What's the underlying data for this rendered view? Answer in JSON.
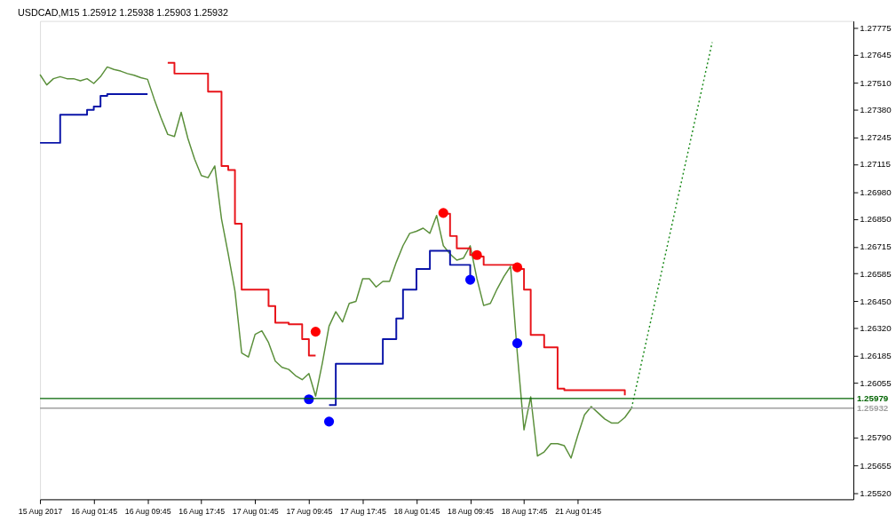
{
  "chart_data": {
    "type": "line",
    "title": "USDCAD,M15  1.25912 1.25938 1.25903 1.25932",
    "categories": [
      "15 Aug 2017",
      null,
      null,
      null,
      null,
      null,
      null,
      null,
      "16 Aug 01:45",
      null,
      null,
      null,
      null,
      null,
      null,
      null,
      "16 Aug 09:45",
      null,
      null,
      null,
      null,
      null,
      null,
      null,
      "16 Aug 17:45",
      null,
      null,
      null,
      null,
      null,
      null,
      null,
      "17 Aug 01:45",
      null,
      null,
      null,
      null,
      null,
      null,
      null,
      "17 Aug 09:45",
      null,
      null,
      null,
      null,
      null,
      null,
      null,
      "17 Aug 17:45",
      null,
      null,
      null,
      null,
      null,
      null,
      null,
      "18 Aug 01:45",
      null,
      null,
      null,
      null,
      null,
      null,
      null,
      "18 Aug 09:45",
      null,
      null,
      null,
      null,
      null,
      null,
      null,
      "18 Aug 17:45",
      null,
      null,
      null,
      null,
      null,
      null,
      null,
      "21 Aug 01:45",
      null,
      null,
      null,
      null,
      null,
      null,
      null,
      null,
      null,
      null,
      null,
      null,
      null,
      null,
      null,
      null,
      null,
      null,
      null,
      null,
      null,
      null,
      null,
      null,
      null,
      null,
      null,
      null,
      null,
      null,
      null,
      null,
      null,
      null,
      null,
      null,
      null,
      null,
      null,
      null,
      null
    ],
    "ylim": [
      1.2549,
      1.2781
    ],
    "yticks": [
      {
        "value": 1.27775,
        "label": "1.27775"
      },
      {
        "value": 1.27645,
        "label": "1.27645"
      },
      {
        "value": 1.2751,
        "label": "1.27510"
      },
      {
        "value": 1.2738,
        "label": "1.27380"
      },
      {
        "value": 1.27245,
        "label": "1.27245"
      },
      {
        "value": 1.27115,
        "label": "1.27115"
      },
      {
        "value": 1.2698,
        "label": "1.26980"
      },
      {
        "value": 1.2685,
        "label": "1.26850"
      },
      {
        "value": 1.26715,
        "label": "1.26715"
      },
      {
        "value": 1.26585,
        "label": "1.26585"
      },
      {
        "value": 1.2645,
        "label": "1.26450"
      },
      {
        "value": 1.2632,
        "label": "1.26320"
      },
      {
        "value": 1.26185,
        "label": "1.26185"
      },
      {
        "value": 1.26055,
        "label": "1.26055"
      },
      {
        "value": 1.2579,
        "label": "1.25790"
      },
      {
        "value": 1.25655,
        "label": "1.25655"
      },
      {
        "value": 1.2552,
        "label": "1.25520"
      }
    ],
    "grid": false,
    "series": [
      {
        "color": "#5a8f3a",
        "marker": "none",
        "values": [
          1.2755,
          1.275,
          1.2753,
          1.2754,
          1.2753,
          1.2753,
          1.2752,
          1.2753,
          1.27507,
          1.2754,
          1.27587,
          1.27575,
          1.27567,
          1.27555,
          1.27547,
          1.27535,
          1.27527,
          1.2743,
          1.2734,
          1.2726,
          1.2725,
          1.27367,
          1.2724,
          1.2714,
          1.2706,
          1.2705,
          1.27107,
          1.2685,
          1.2668,
          1.265,
          1.262,
          1.2618,
          1.2629,
          1.26307,
          1.2625,
          1.2616,
          1.2613,
          1.2612,
          1.2609,
          1.2607,
          1.261,
          1.2599,
          1.2615,
          1.2633,
          1.264,
          1.2635,
          1.2644,
          1.2645,
          1.2656,
          1.2656,
          1.2652,
          1.26547,
          1.26547,
          1.2664,
          1.2672,
          1.2678,
          1.2679,
          1.26805,
          1.2678,
          1.26867,
          1.2672,
          1.2668,
          1.2665,
          1.2666,
          1.2672,
          1.2656,
          1.2643,
          1.2644,
          1.2651,
          1.2657,
          1.2662,
          1.262,
          1.25827,
          1.25987,
          1.257,
          1.2572,
          1.2576,
          1.2576,
          1.2575,
          1.2569,
          1.258,
          1.259,
          1.2594,
          1.2591,
          1.2588,
          1.2586,
          1.2586,
          1.25887,
          1.25932,
          null,
          null,
          null,
          null,
          null,
          null,
          null,
          null,
          null,
          null,
          null,
          null,
          null,
          null,
          null,
          null,
          null,
          null,
          null,
          null,
          null,
          null,
          null,
          null,
          null,
          null,
          null,
          null,
          null,
          null,
          null,
          null,
          null
        ]
      },
      {
        "type": "step",
        "color": "#e8141a",
        "marker": "none",
        "values": [
          null,
          null,
          null,
          null,
          null,
          null,
          null,
          null,
          null,
          null,
          null,
          null,
          null,
          null,
          null,
          null,
          null,
          null,
          null,
          1.27607,
          1.27555,
          1.27555,
          1.27555,
          1.27555,
          1.27555,
          1.27467,
          1.27467,
          1.27107,
          1.27087,
          1.26827,
          1.26507,
          1.26507,
          1.26507,
          1.26507,
          1.26427,
          1.26347,
          1.26347,
          1.26339,
          1.26339,
          1.26267,
          1.26187,
          1.26187,
          null,
          null,
          null,
          null,
          null,
          null,
          null,
          null,
          null,
          null,
          null,
          null,
          null,
          null,
          null,
          null,
          null,
          null,
          1.26875,
          1.26767,
          1.26707,
          1.26707,
          1.26675,
          1.26667,
          1.26627,
          1.26627,
          1.26627,
          1.26627,
          1.26627,
          1.26607,
          1.26507,
          1.26287,
          1.26287,
          1.26227,
          1.26227,
          1.26027,
          1.26019,
          1.26019,
          1.26019,
          1.26019,
          1.26019,
          1.26019,
          1.26019,
          1.26019,
          1.26019,
          1.25995,
          null,
          null,
          null,
          null,
          null,
          null,
          null,
          null,
          null,
          null,
          null,
          null,
          null,
          null,
          null,
          null,
          null,
          null,
          null,
          null,
          null,
          null,
          null,
          null,
          null,
          null,
          null,
          null,
          null,
          null,
          null,
          null,
          null,
          null
        ]
      },
      {
        "type": "step",
        "color": "#0a14a8",
        "marker": "none",
        "values": [
          1.27219,
          1.27219,
          1.27219,
          1.27355,
          1.27355,
          1.27355,
          1.27355,
          1.27379,
          1.27395,
          1.27447,
          1.27455,
          1.27455,
          1.27455,
          1.27455,
          1.27455,
          1.27455,
          1.27455,
          null,
          null,
          null,
          null,
          null,
          null,
          null,
          null,
          null,
          null,
          null,
          null,
          null,
          null,
          null,
          null,
          null,
          null,
          null,
          null,
          null,
          null,
          null,
          null,
          null,
          null,
          1.25947,
          1.26147,
          1.26147,
          1.26147,
          1.26147,
          1.26147,
          1.26147,
          1.26147,
          1.26267,
          1.26267,
          1.26367,
          1.26507,
          1.26507,
          1.26607,
          1.26607,
          1.26695,
          1.26695,
          1.26695,
          1.26627,
          1.26627,
          1.26627,
          1.26555,
          null,
          null,
          null,
          null,
          null,
          null,
          null,
          null,
          null,
          null,
          null,
          null,
          null,
          null,
          null,
          null,
          null,
          null,
          null,
          null,
          null,
          null,
          null,
          null,
          null,
          null,
          null,
          null,
          null,
          null,
          null,
          null,
          null,
          null,
          null,
          null,
          null,
          null,
          null,
          null,
          null,
          null,
          null,
          null,
          null,
          null,
          null,
          null,
          null,
          null,
          null,
          null,
          null,
          null,
          null,
          null,
          null
        ]
      },
      {
        "type": "scatter",
        "color": "#ff0000",
        "marker": "circle",
        "values": [
          null,
          null,
          null,
          null,
          null,
          null,
          null,
          null,
          null,
          null,
          null,
          null,
          null,
          null,
          null,
          null,
          null,
          null,
          null,
          null,
          null,
          null,
          null,
          null,
          null,
          null,
          null,
          null,
          null,
          null,
          null,
          null,
          null,
          null,
          null,
          null,
          null,
          null,
          null,
          null,
          null,
          1.26303,
          null,
          null,
          null,
          null,
          null,
          null,
          null,
          null,
          null,
          null,
          null,
          null,
          null,
          null,
          null,
          null,
          null,
          null,
          1.26879,
          null,
          null,
          null,
          null,
          1.26675,
          null,
          null,
          null,
          null,
          null,
          1.26615,
          null,
          null,
          null,
          null,
          null,
          null,
          null,
          null,
          null,
          null,
          null,
          null,
          null,
          null,
          null,
          null,
          null,
          null,
          null,
          null,
          null,
          null,
          null,
          null,
          null,
          null,
          null,
          null,
          null,
          null,
          null,
          null,
          null,
          null,
          null,
          null,
          null,
          null,
          null,
          null,
          null,
          null,
          null,
          null,
          null,
          null,
          null,
          null,
          null,
          null
        ]
      },
      {
        "type": "scatter",
        "color": "#0000ff",
        "marker": "circle",
        "values": [
          null,
          null,
          null,
          null,
          null,
          null,
          null,
          null,
          null,
          null,
          null,
          null,
          null,
          null,
          null,
          null,
          null,
          null,
          null,
          null,
          null,
          null,
          null,
          null,
          null,
          null,
          null,
          null,
          null,
          null,
          null,
          null,
          null,
          null,
          null,
          null,
          null,
          null,
          null,
          null,
          1.25975,
          null,
          null,
          1.25867,
          null,
          null,
          null,
          null,
          null,
          null,
          null,
          null,
          null,
          null,
          null,
          null,
          null,
          null,
          null,
          null,
          null,
          null,
          null,
          null,
          1.26555,
          null,
          null,
          null,
          null,
          null,
          null,
          1.26247,
          null,
          null,
          null,
          null,
          null,
          null,
          null,
          null,
          null,
          null,
          null,
          null,
          null,
          null,
          null,
          null,
          null,
          null,
          null,
          null,
          null,
          null,
          null,
          null,
          null,
          null,
          null,
          null,
          null,
          null,
          null,
          null,
          null,
          null,
          null,
          null,
          null,
          null,
          null,
          null,
          null,
          null,
          null,
          null,
          null,
          null,
          null,
          null,
          null,
          null
        ]
      },
      {
        "type": "line",
        "color": "#1a8a1a",
        "marker": "none",
        "line_style": "dotted",
        "values": [
          null,
          null,
          null,
          null,
          null,
          null,
          null,
          null,
          null,
          null,
          null,
          null,
          null,
          null,
          null,
          null,
          null,
          null,
          null,
          null,
          null,
          null,
          null,
          null,
          null,
          null,
          null,
          null,
          null,
          null,
          null,
          null,
          null,
          null,
          null,
          null,
          null,
          null,
          null,
          null,
          null,
          null,
          null,
          null,
          null,
          null,
          null,
          null,
          null,
          null,
          null,
          null,
          null,
          null,
          null,
          null,
          null,
          null,
          null,
          null,
          null,
          null,
          null,
          null,
          null,
          null,
          null,
          null,
          null,
          null,
          null,
          null,
          null,
          null,
          null,
          null,
          null,
          null,
          null,
          null,
          null,
          null,
          null,
          null,
          null,
          null,
          null,
          null,
          1.25932,
          1.2608,
          1.26228,
          1.26376,
          1.26524,
          1.26672,
          1.2682,
          1.26968,
          1.27116,
          1.27264,
          1.27412,
          1.2756,
          1.27707,
          null,
          null,
          null,
          null,
          null,
          null,
          null,
          null,
          null,
          null,
          null,
          null,
          null,
          null,
          null,
          null,
          null,
          null,
          null,
          null,
          null
        ]
      }
    ],
    "ref_lines": [
      {
        "axis": "y",
        "value": 1.25979,
        "label": "1.25979",
        "color": "#006400",
        "line_style": "solid"
      },
      {
        "axis": "y",
        "value": 1.25932,
        "label": "1.25932",
        "color": "#a0a0a0",
        "line_style": "solid"
      }
    ]
  }
}
